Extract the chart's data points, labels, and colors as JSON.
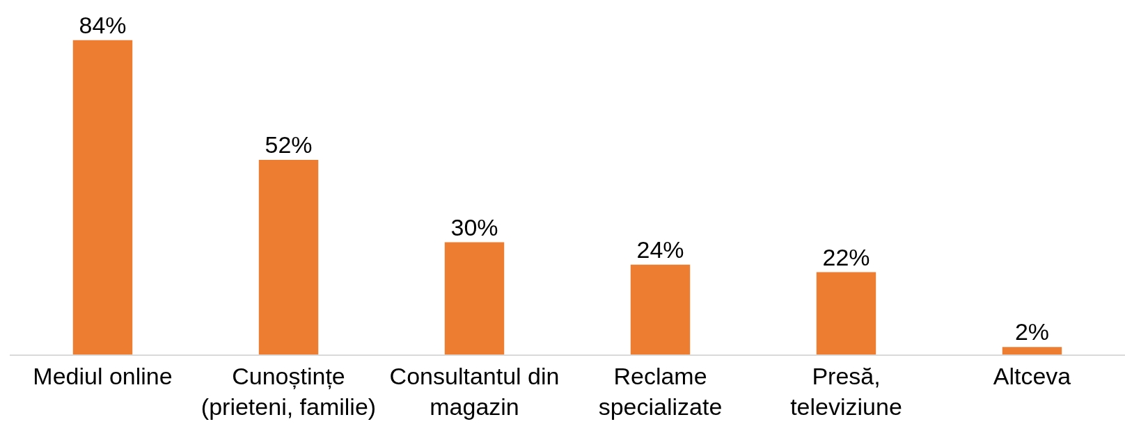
{
  "chart_data": {
    "type": "bar",
    "categories": [
      "Mediul online",
      "Cunoștințe (prieteni, familie)",
      "Consultantul din magazin",
      "Reclame specializate",
      "Presă, televiziune",
      "Altceva"
    ],
    "values": [
      84,
      52,
      30,
      24,
      22,
      2
    ],
    "value_labels": [
      "84%",
      "52%",
      "30%",
      "24%",
      "22%",
      "2%"
    ],
    "color": "#ed7d31"
  }
}
